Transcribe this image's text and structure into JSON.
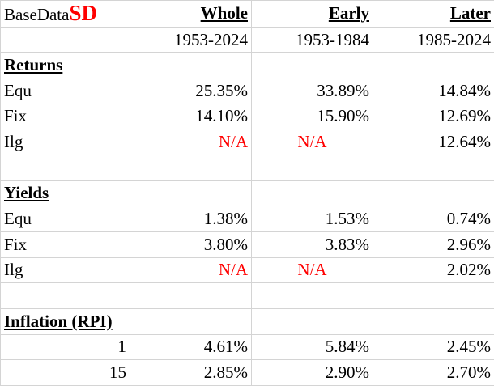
{
  "title": {
    "base": "BaseData",
    "accent": "SD",
    "accent_color": "#ff0000"
  },
  "columns": [
    {
      "label": "Whole",
      "period": "1953-2024"
    },
    {
      "label": "Early",
      "period": "1953-1984"
    },
    {
      "label": "Later",
      "period": "1985-2024"
    }
  ],
  "sections": {
    "returns": {
      "heading": "Returns",
      "rows": [
        {
          "label": "Equ",
          "values": [
            "25.35%",
            "33.89%",
            "14.84%"
          ]
        },
        {
          "label": "Fix",
          "values": [
            "14.10%",
            "15.90%",
            "12.69%"
          ]
        },
        {
          "label": "Ilg",
          "values": [
            "N/A",
            "N/A",
            "12.64%"
          ]
        }
      ]
    },
    "yields": {
      "heading": "Yields",
      "rows": [
        {
          "label": "Equ",
          "values": [
            "1.38%",
            "1.53%",
            "0.74%"
          ]
        },
        {
          "label": "Fix",
          "values": [
            "3.80%",
            "3.83%",
            "2.96%"
          ]
        },
        {
          "label": "Ilg",
          "values": [
            "N/A",
            "N/A",
            "2.02%"
          ]
        }
      ]
    },
    "inflation": {
      "heading": "Inflation (RPI)",
      "rows": [
        {
          "label": "1",
          "values": [
            "4.61%",
            "5.84%",
            "2.45%"
          ]
        },
        {
          "label": "15",
          "values": [
            "2.85%",
            "2.90%",
            "2.70%"
          ]
        }
      ]
    }
  },
  "na_color": "#ff0000"
}
